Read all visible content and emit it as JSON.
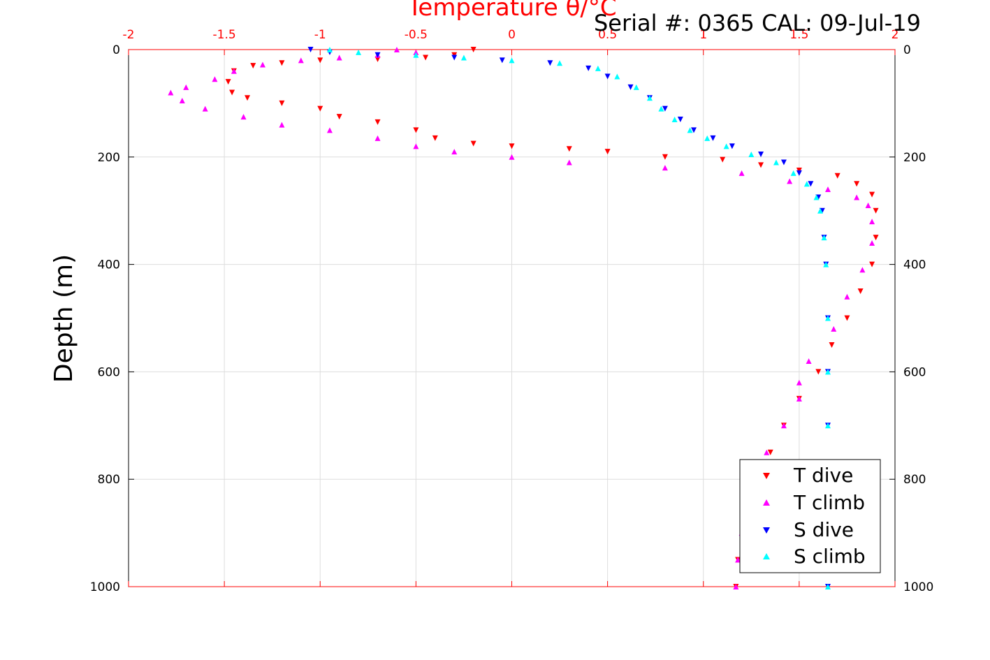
{
  "title_top": "Temperature θ/°C",
  "serial_text": "Serial #: 0365  CAL: 09-Jul-19",
  "colors": {
    "t_dive": "#ff0000",
    "t_climb": "#ff00ff",
    "s_dive": "#0000ff",
    "s_climb": "#00ffff",
    "top_axis": "#ff0000",
    "grid": "#dddddd"
  },
  "chart_data": {
    "type": "scatter",
    "title": "Temperature θ/°C",
    "xlabel": "Temperature θ/°C",
    "ylabel": "Depth (m)",
    "xlim": [
      -2,
      2
    ],
    "ylim": [
      0,
      1000
    ],
    "y_reversed": true,
    "grid": true,
    "legend_position": "bottom-right",
    "x_ticks": [
      "-2",
      "-1.5",
      "-1",
      "-0.5",
      "0",
      "0.5",
      "1",
      "1.5",
      "2"
    ],
    "y_ticks": [
      "0",
      "200",
      "400",
      "600",
      "800",
      "1000"
    ],
    "series": [
      {
        "name": "T dive",
        "color": "#ff0000",
        "marker": "triangle-down",
        "points": [
          [
            -0.2,
            0
          ],
          [
            -0.3,
            10
          ],
          [
            -0.45,
            15
          ],
          [
            -0.7,
            18
          ],
          [
            -1.0,
            20
          ],
          [
            -1.2,
            25
          ],
          [
            -1.35,
            30
          ],
          [
            -1.45,
            40
          ],
          [
            -1.48,
            60
          ],
          [
            -1.46,
            80
          ],
          [
            -1.38,
            90
          ],
          [
            -1.2,
            100
          ],
          [
            -1.0,
            110
          ],
          [
            -0.9,
            125
          ],
          [
            -0.7,
            135
          ],
          [
            -0.5,
            150
          ],
          [
            -0.4,
            165
          ],
          [
            -0.2,
            175
          ],
          [
            0.0,
            180
          ],
          [
            0.3,
            185
          ],
          [
            0.5,
            190
          ],
          [
            0.8,
            200
          ],
          [
            1.1,
            205
          ],
          [
            1.3,
            215
          ],
          [
            1.5,
            225
          ],
          [
            1.7,
            235
          ],
          [
            1.8,
            250
          ],
          [
            1.88,
            270
          ],
          [
            1.9,
            300
          ],
          [
            1.9,
            350
          ],
          [
            1.88,
            400
          ],
          [
            1.82,
            450
          ],
          [
            1.75,
            500
          ],
          [
            1.67,
            550
          ],
          [
            1.6,
            600
          ],
          [
            1.5,
            650
          ],
          [
            1.42,
            700
          ],
          [
            1.35,
            750
          ],
          [
            1.3,
            800
          ],
          [
            1.25,
            850
          ],
          [
            1.22,
            900
          ],
          [
            1.18,
            950
          ],
          [
            1.17,
            1000
          ]
        ]
      },
      {
        "name": "T climb",
        "color": "#ff00ff",
        "marker": "triangle-up",
        "points": [
          [
            -0.6,
            0
          ],
          [
            -0.5,
            5
          ],
          [
            -0.7,
            10
          ],
          [
            -0.9,
            15
          ],
          [
            -1.1,
            20
          ],
          [
            -1.3,
            28
          ],
          [
            -1.45,
            40
          ],
          [
            -1.55,
            55
          ],
          [
            -1.7,
            70
          ],
          [
            -1.78,
            80
          ],
          [
            -1.72,
            95
          ],
          [
            -1.6,
            110
          ],
          [
            -1.4,
            125
          ],
          [
            -1.2,
            140
          ],
          [
            -0.95,
            150
          ],
          [
            -0.7,
            165
          ],
          [
            -0.5,
            180
          ],
          [
            -0.3,
            190
          ],
          [
            0.0,
            200
          ],
          [
            0.3,
            210
          ],
          [
            0.8,
            220
          ],
          [
            1.2,
            230
          ],
          [
            1.45,
            245
          ],
          [
            1.65,
            260
          ],
          [
            1.8,
            275
          ],
          [
            1.86,
            290
          ],
          [
            1.88,
            320
          ],
          [
            1.88,
            360
          ],
          [
            1.83,
            410
          ],
          [
            1.75,
            460
          ],
          [
            1.68,
            520
          ],
          [
            1.55,
            580
          ],
          [
            1.5,
            620
          ],
          [
            1.5,
            650
          ],
          [
            1.42,
            700
          ],
          [
            1.33,
            750
          ],
          [
            1.28,
            800
          ],
          [
            1.23,
            850
          ],
          [
            1.2,
            900
          ],
          [
            1.18,
            950
          ],
          [
            1.17,
            1000
          ]
        ]
      },
      {
        "name": "S dive",
        "color": "#0000ff",
        "marker": "triangle-down",
        "points": [
          [
            -1.05,
            0
          ],
          [
            -0.95,
            5
          ],
          [
            -0.7,
            10
          ],
          [
            -0.3,
            15
          ],
          [
            -0.05,
            20
          ],
          [
            0.2,
            25
          ],
          [
            0.4,
            35
          ],
          [
            0.5,
            50
          ],
          [
            0.62,
            70
          ],
          [
            0.72,
            90
          ],
          [
            0.8,
            110
          ],
          [
            0.88,
            130
          ],
          [
            0.95,
            150
          ],
          [
            1.05,
            165
          ],
          [
            1.15,
            180
          ],
          [
            1.3,
            195
          ],
          [
            1.42,
            210
          ],
          [
            1.5,
            230
          ],
          [
            1.56,
            250
          ],
          [
            1.6,
            275
          ],
          [
            1.62,
            300
          ],
          [
            1.63,
            350
          ],
          [
            1.64,
            400
          ],
          [
            1.65,
            500
          ],
          [
            1.65,
            600
          ],
          [
            1.65,
            700
          ],
          [
            1.65,
            800
          ],
          [
            1.65,
            900
          ],
          [
            1.65,
            1000
          ]
        ]
      },
      {
        "name": "S climb",
        "color": "#00ffff",
        "marker": "triangle-up",
        "points": [
          [
            -0.95,
            0
          ],
          [
            -0.8,
            5
          ],
          [
            -0.5,
            10
          ],
          [
            -0.25,
            15
          ],
          [
            0.0,
            20
          ],
          [
            0.25,
            25
          ],
          [
            0.45,
            35
          ],
          [
            0.55,
            50
          ],
          [
            0.65,
            70
          ],
          [
            0.72,
            90
          ],
          [
            0.78,
            110
          ],
          [
            0.85,
            130
          ],
          [
            0.93,
            150
          ],
          [
            1.02,
            165
          ],
          [
            1.12,
            180
          ],
          [
            1.25,
            195
          ],
          [
            1.38,
            210
          ],
          [
            1.47,
            230
          ],
          [
            1.54,
            250
          ],
          [
            1.59,
            275
          ],
          [
            1.61,
            300
          ],
          [
            1.63,
            350
          ],
          [
            1.64,
            400
          ],
          [
            1.65,
            500
          ],
          [
            1.65,
            600
          ],
          [
            1.65,
            700
          ],
          [
            1.65,
            800
          ],
          [
            1.65,
            900
          ],
          [
            1.65,
            1000
          ]
        ]
      }
    ]
  }
}
